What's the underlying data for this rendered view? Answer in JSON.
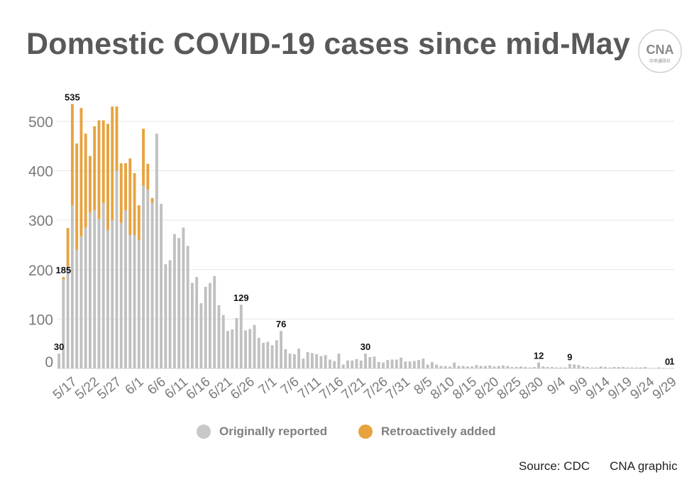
{
  "title": "Domestic COVID-19 cases since mid-May",
  "logo": {
    "text": "CNA",
    "subtext": "中央通訊社"
  },
  "source": "Source: CDC",
  "credit": "CNA graphic",
  "colors": {
    "original": "#c0c0c0",
    "retro": "#e8a33d",
    "grid": "#e6e6e6",
    "axis_text": "#7a7a7a"
  },
  "chart_data": {
    "type": "bar",
    "stacked": true,
    "ylim": [
      0,
      530
    ],
    "yticks": [
      0,
      100,
      200,
      300,
      400,
      500
    ],
    "grid": true,
    "legend_position": "bottom",
    "first_date": "5/15",
    "x_tick_labels": [
      "5/17",
      "5/22",
      "5/27",
      "6/1",
      "6/6",
      "6/11",
      "6/16",
      "6/21",
      "6/26",
      "7/1",
      "7/6",
      "7/11",
      "7/16",
      "7/21",
      "7/26",
      "7/31",
      "8/5",
      "8/10",
      "8/15",
      "8/20",
      "8/25",
      "8/30",
      "9/4",
      "9/9",
      "9/14",
      "9/19",
      "9/24",
      "9/29"
    ],
    "series": [
      {
        "name": "Originally reported",
        "values": [
          30,
          180,
          206,
          330,
          240,
          267,
          285,
          315,
          320,
          302,
          335,
          280,
          300,
          400,
          295,
          320,
          270,
          270,
          260,
          370,
          362,
          335,
          475,
          333,
          211,
          219,
          272,
          264,
          285,
          248,
          173,
          185,
          132,
          165,
          173,
          187,
          128,
          108,
          76,
          79,
          102,
          129,
          77,
          80,
          88,
          62,
          52,
          54,
          47,
          57,
          76,
          39,
          30,
          29,
          40,
          20,
          33,
          31,
          29,
          25,
          27,
          18,
          15,
          30,
          8,
          16,
          16,
          19,
          16,
          30,
          23,
          24,
          13,
          12,
          17,
          18,
          18,
          22,
          14,
          14,
          15,
          17,
          20,
          8,
          13,
          8,
          5,
          5,
          4,
          12,
          5,
          5,
          4,
          4,
          7,
          5,
          5,
          6,
          4,
          5,
          6,
          5,
          3,
          3,
          4,
          3,
          2,
          3,
          12,
          4,
          3,
          3,
          2,
          2,
          2,
          9,
          8,
          7,
          4,
          3,
          2,
          2,
          4,
          3,
          2,
          3,
          3,
          3,
          2,
          2,
          2,
          2,
          3,
          1,
          1,
          2,
          1,
          0,
          1
        ]
      },
      {
        "name": "Retroactively added",
        "values": [
          0,
          5,
          78,
          205,
          215,
          260,
          190,
          115,
          170,
          200,
          167,
          215,
          230,
          130,
          120,
          95,
          155,
          125,
          70,
          115,
          52,
          10,
          0,
          0,
          0,
          0,
          0,
          0,
          0,
          0,
          0,
          0,
          0,
          0,
          0,
          0,
          0,
          0,
          0,
          0,
          0,
          0,
          0,
          0,
          0,
          0,
          0,
          0,
          0,
          0,
          0,
          0,
          0,
          0,
          0,
          0,
          0,
          0,
          0,
          0,
          0,
          0,
          0,
          0,
          0,
          0,
          0,
          0,
          0,
          0,
          0,
          0,
          0,
          0,
          0,
          0,
          0,
          0,
          0,
          0,
          0,
          0,
          0,
          0,
          0,
          0,
          0,
          0,
          0,
          0,
          0,
          0,
          0,
          0,
          0,
          0,
          0,
          0,
          0,
          0,
          0,
          0,
          0,
          0,
          0,
          0,
          0,
          0,
          0,
          0,
          0,
          0,
          0,
          0,
          0,
          0,
          0,
          0,
          0,
          0,
          0,
          0,
          0,
          0,
          0,
          0,
          0,
          0,
          0,
          0,
          0,
          0,
          0,
          0,
          0,
          0,
          0,
          0,
          0
        ]
      }
    ],
    "annotations": [
      {
        "index": 0,
        "text": "30"
      },
      {
        "index": 1,
        "text": "185"
      },
      {
        "index": 3,
        "text": "535"
      },
      {
        "index": 41,
        "text": "129"
      },
      {
        "index": 50,
        "text": "76"
      },
      {
        "index": 69,
        "text": "30"
      },
      {
        "index": 108,
        "text": "12"
      },
      {
        "index": 115,
        "text": "9"
      },
      {
        "index": 137,
        "text": "0"
      },
      {
        "index": 138,
        "text": "1"
      }
    ]
  }
}
